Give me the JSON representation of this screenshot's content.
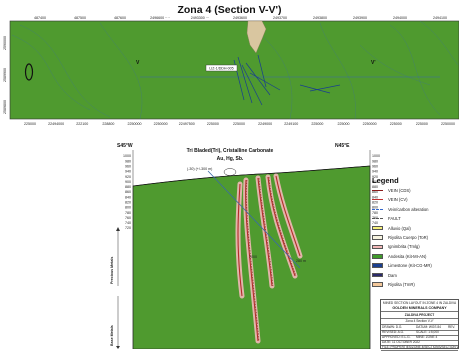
{
  "map": {
    "title": "Zona 4 (Section V-V')",
    "plan": {
      "top_ticks": [
        "487400",
        "487500",
        "487600",
        "2496600 ····",
        "2493300 ···",
        "2493600",
        "2493700",
        "2493800",
        "2493900",
        "2494000",
        "2494100"
      ],
      "bottom_ticks": [
        "225000",
        "22494000",
        "222100",
        "228800",
        "2250000",
        "2250000",
        "22497500",
        "225000",
        "225000",
        "2249000",
        "2249100",
        "225000",
        "225000",
        "2250000",
        "225000",
        "225000",
        "2250000"
      ],
      "left_ticks": [
        "2590000",
        "2589900",
        "2589800"
      ],
      "section_marker_left": "V",
      "section_marker_right": "V'",
      "drillhole_label": "LIZ-1/DDH-005"
    },
    "section": {
      "left_direction": "S45°W",
      "right_direction": "N45°E",
      "heading_line1": "Tri Bladed(Tri), Cristalline Carbonate",
      "heading_line2": "Au, Hg, Sb.",
      "elevation_ticks": [
        "1000",
        "980",
        "960",
        "940",
        "920",
        "900",
        "880",
        "860",
        "840",
        "820",
        "800",
        "780",
        "760",
        "740",
        "720"
      ],
      "collar_label": "(-30) (+/-300 m)",
      "intersection_label_1": "7000",
      "intersection_label_2": "280 m",
      "side_label_upper": "Precious Metals",
      "side_label_lower": "Base Metals"
    },
    "legend": {
      "title": "Legend",
      "items": [
        {
          "label": "VEIN (CDS)",
          "kind": "line",
          "color": "#8a1a1a"
        },
        {
          "label": "VEIN (CV)",
          "kind": "line",
          "color": "#c03030"
        },
        {
          "label": "Vein/carbon alteration",
          "kind": "dash",
          "color": "#3366cc"
        },
        {
          "label": "FAULT",
          "kind": "dash",
          "color": "#555555"
        },
        {
          "label": "Alluvio (Qal)",
          "kind": "box",
          "color": "#f6f07a"
        },
        {
          "label": "Riyolita Cuerpo (ToR)",
          "kind": "box",
          "color": "#f7f4e0"
        },
        {
          "label": "Ignimbrita (Tmlg)",
          "kind": "box",
          "color": "#f2b8b8"
        },
        {
          "label": "Andesita (Kit-MI-AN)",
          "kind": "box",
          "color": "#3f9a2a"
        },
        {
          "label": "Limestone (Kit-CG-MR)",
          "kind": "box",
          "color": "#1a3f8f"
        },
        {
          "label": "Dam",
          "kind": "box",
          "color": "#2a2a6a"
        },
        {
          "label": "Riyolita (TmR)",
          "kind": "box",
          "color": "#f2c79a"
        }
      ]
    },
    "title_block": {
      "line1": "MINED SECTION LAYOUT IN ZONE 4 IN ZALDIVA",
      "company": "GOLDEN MINERALS COMPANY",
      "project": "ZALDIVA PROJECT",
      "subtitle": "Zona 4 Section V-V'",
      "rows": [
        [
          "DRAWN:  D.G.",
          "DATUM: WGS 84",
          "REV."
        ],
        [
          "REVISED: A.G.",
          "SCALE: 1:5,000",
          ""
        ],
        [
          "APPROVED: E.L.G.",
          "MINE: ZONE 4",
          ""
        ],
        [
          "DATE: 11 OCTOBER 2022",
          "",
          ""
        ],
        [
          "FILE: PROPERTIES/ZONE 4/SECTIONS/SECTION V-V'",
          "",
          ""
        ]
      ]
    },
    "colors": {
      "green_fill": "#4f9a2f",
      "dark_green": "#3d7d23",
      "vein_red": "#b52a2a",
      "vein_dark": "#6d1e15",
      "pink_ignimbrite": "#f2b8b8",
      "tan_rhyolite": "#d9c6a0",
      "contour_blue": "#3a6aa8"
    }
  }
}
